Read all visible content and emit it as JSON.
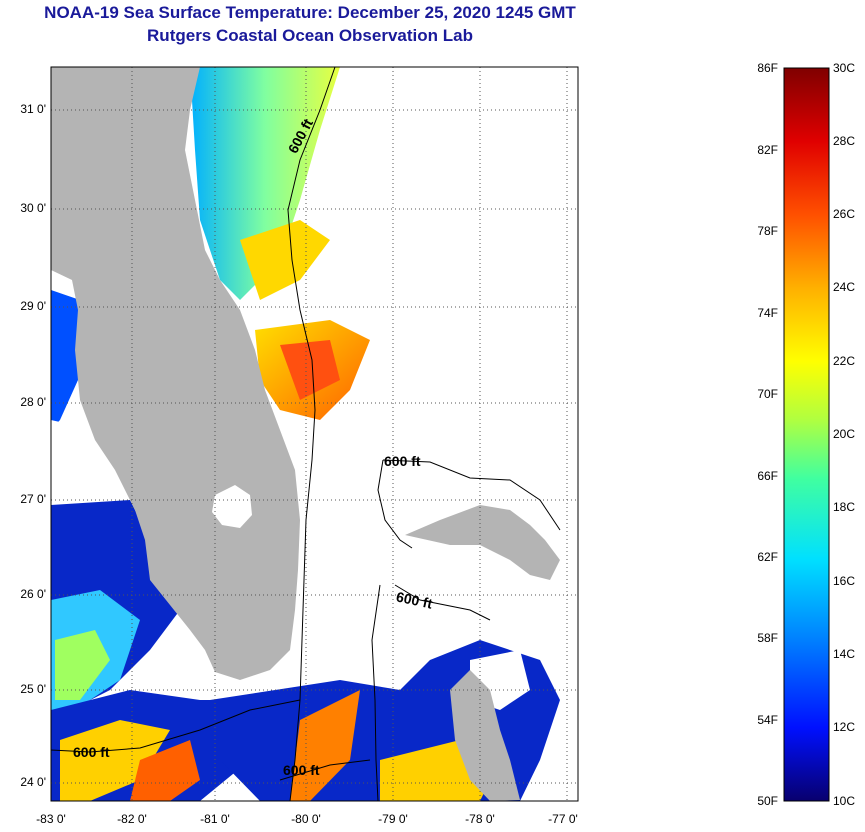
{
  "title": "NOAA-19 Sea Surface Temperature:  December 25, 2020 1245 GMT",
  "subtitle": "Rutgers Coastal Ocean Observation Lab",
  "lat_labels": [
    "31 0'",
    "30 0'",
    "29 0'",
    "28 0'",
    "27 0'",
    "26 0'",
    "25 0'",
    "24 0'"
  ],
  "lon_labels": [
    "-83 0'",
    "-82 0'",
    "-81 0'",
    "-80 0'",
    "-79 0'",
    "-78 0'",
    "-77 0'"
  ],
  "contour_labels": [
    "600 ft",
    "600 ft",
    "600 ft",
    "600 ft",
    "600 ft"
  ],
  "colorbar": {
    "fahrenheit_labels": [
      "86F",
      "82F",
      "78F",
      "74F",
      "70F",
      "66F",
      "62F",
      "58F",
      "54F",
      "50F"
    ],
    "celsius_labels": [
      "30C",
      "28C",
      "26C",
      "24C",
      "22C",
      "20C",
      "18C",
      "16C",
      "14C",
      "12C",
      "10C"
    ],
    "colors": [
      "#08006e",
      "#0010ff",
      "#0080ff",
      "#00e0ff",
      "#40ffa0",
      "#b0ff40",
      "#ffff00",
      "#ffb000",
      "#ff5000",
      "#e00000",
      "#800000"
    ]
  },
  "colors": {
    "land": "#b4b4b4",
    "title": "#1a1a9a",
    "grid": "#555555"
  }
}
